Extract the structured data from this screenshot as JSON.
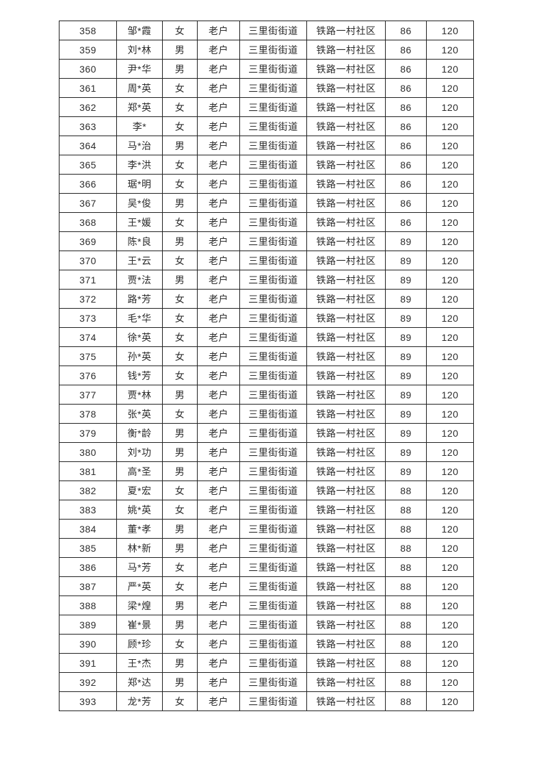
{
  "colors": {
    "page_background": "#ffffff",
    "table_border": "#1f1f1f",
    "table_text": "#2b2b2b"
  },
  "table": {
    "columns": [
      "serial",
      "name",
      "gender",
      "category",
      "street",
      "community",
      "score",
      "amount"
    ],
    "rows": [
      {
        "cells": [
          "358",
          "邹*霞",
          "女",
          "老户",
          "三里街街道",
          "铁路一村社区",
          "86",
          "120"
        ]
      },
      {
        "cells": [
          "359",
          "刘*林",
          "男",
          "老户",
          "三里街街道",
          "铁路一村社区",
          "86",
          "120"
        ]
      },
      {
        "cells": [
          "360",
          "尹*华",
          "男",
          "老户",
          "三里街街道",
          "铁路一村社区",
          "86",
          "120"
        ]
      },
      {
        "cells": [
          "361",
          "周*英",
          "女",
          "老户",
          "三里街街道",
          "铁路一村社区",
          "86",
          "120"
        ]
      },
      {
        "cells": [
          "362",
          "郑*英",
          "女",
          "老户",
          "三里街街道",
          "铁路一村社区",
          "86",
          "120"
        ]
      },
      {
        "cells": [
          "363",
          "李*",
          "女",
          "老户",
          "三里街街道",
          "铁路一村社区",
          "86",
          "120"
        ]
      },
      {
        "cells": [
          "364",
          "马*治",
          "男",
          "老户",
          "三里街街道",
          "铁路一村社区",
          "86",
          "120"
        ]
      },
      {
        "cells": [
          "365",
          "李*洪",
          "女",
          "老户",
          "三里街街道",
          "铁路一村社区",
          "86",
          "120"
        ]
      },
      {
        "cells": [
          "366",
          "琚*明",
          "女",
          "老户",
          "三里街街道",
          "铁路一村社区",
          "86",
          "120"
        ]
      },
      {
        "cells": [
          "367",
          "吴*俊",
          "男",
          "老户",
          "三里街街道",
          "铁路一村社区",
          "86",
          "120"
        ]
      },
      {
        "cells": [
          "368",
          "王*媛",
          "女",
          "老户",
          "三里街街道",
          "铁路一村社区",
          "86",
          "120"
        ]
      },
      {
        "cells": [
          "369",
          "陈*良",
          "男",
          "老户",
          "三里街街道",
          "铁路一村社区",
          "89",
          "120"
        ]
      },
      {
        "cells": [
          "370",
          "王*云",
          "女",
          "老户",
          "三里街街道",
          "铁路一村社区",
          "89",
          "120"
        ]
      },
      {
        "cells": [
          "371",
          "贾*法",
          "男",
          "老户",
          "三里街街道",
          "铁路一村社区",
          "89",
          "120"
        ]
      },
      {
        "cells": [
          "372",
          "路*芳",
          "女",
          "老户",
          "三里街街道",
          "铁路一村社区",
          "89",
          "120"
        ]
      },
      {
        "cells": [
          "373",
          "毛*华",
          "女",
          "老户",
          "三里街街道",
          "铁路一村社区",
          "89",
          "120"
        ]
      },
      {
        "cells": [
          "374",
          "徐*英",
          "女",
          "老户",
          "三里街街道",
          "铁路一村社区",
          "89",
          "120"
        ]
      },
      {
        "cells": [
          "375",
          "孙*英",
          "女",
          "老户",
          "三里街街道",
          "铁路一村社区",
          "89",
          "120"
        ]
      },
      {
        "cells": [
          "376",
          "钱*芳",
          "女",
          "老户",
          "三里街街道",
          "铁路一村社区",
          "89",
          "120"
        ]
      },
      {
        "cells": [
          "377",
          "贾*林",
          "男",
          "老户",
          "三里街街道",
          "铁路一村社区",
          "89",
          "120"
        ]
      },
      {
        "cells": [
          "378",
          "张*英",
          "女",
          "老户",
          "三里街街道",
          "铁路一村社区",
          "89",
          "120"
        ]
      },
      {
        "cells": [
          "379",
          "衡*龄",
          "男",
          "老户",
          "三里街街道",
          "铁路一村社区",
          "89",
          "120"
        ]
      },
      {
        "cells": [
          "380",
          "刘*功",
          "男",
          "老户",
          "三里街街道",
          "铁路一村社区",
          "89",
          "120"
        ]
      },
      {
        "cells": [
          "381",
          "高*圣",
          "男",
          "老户",
          "三里街街道",
          "铁路一村社区",
          "89",
          "120"
        ]
      },
      {
        "cells": [
          "382",
          "夏*宏",
          "女",
          "老户",
          "三里街街道",
          "铁路一村社区",
          "88",
          "120"
        ]
      },
      {
        "cells": [
          "383",
          "姚*英",
          "女",
          "老户",
          "三里街街道",
          "铁路一村社区",
          "88",
          "120"
        ]
      },
      {
        "cells": [
          "384",
          "董*孝",
          "男",
          "老户",
          "三里街街道",
          "铁路一村社区",
          "88",
          "120"
        ]
      },
      {
        "cells": [
          "385",
          "林*新",
          "男",
          "老户",
          "三里街街道",
          "铁路一村社区",
          "88",
          "120"
        ]
      },
      {
        "cells": [
          "386",
          "马*芳",
          "女",
          "老户",
          "三里街街道",
          "铁路一村社区",
          "88",
          "120"
        ]
      },
      {
        "cells": [
          "387",
          "严*英",
          "女",
          "老户",
          "三里街街道",
          "铁路一村社区",
          "88",
          "120"
        ]
      },
      {
        "cells": [
          "388",
          "梁*煌",
          "男",
          "老户",
          "三里街街道",
          "铁路一村社区",
          "88",
          "120"
        ]
      },
      {
        "cells": [
          "389",
          "崔*景",
          "男",
          "老户",
          "三里街街道",
          "铁路一村社区",
          "88",
          "120"
        ]
      },
      {
        "cells": [
          "390",
          "顾*珍",
          "女",
          "老户",
          "三里街街道",
          "铁路一村社区",
          "88",
          "120"
        ]
      },
      {
        "cells": [
          "391",
          "王*杰",
          "男",
          "老户",
          "三里街街道",
          "铁路一村社区",
          "88",
          "120"
        ]
      },
      {
        "cells": [
          "392",
          "郑*达",
          "男",
          "老户",
          "三里街街道",
          "铁路一村社区",
          "88",
          "120"
        ]
      },
      {
        "cells": [
          "393",
          "龙*芳",
          "女",
          "老户",
          "三里街街道",
          "铁路一村社区",
          "88",
          "120"
        ]
      }
    ]
  }
}
